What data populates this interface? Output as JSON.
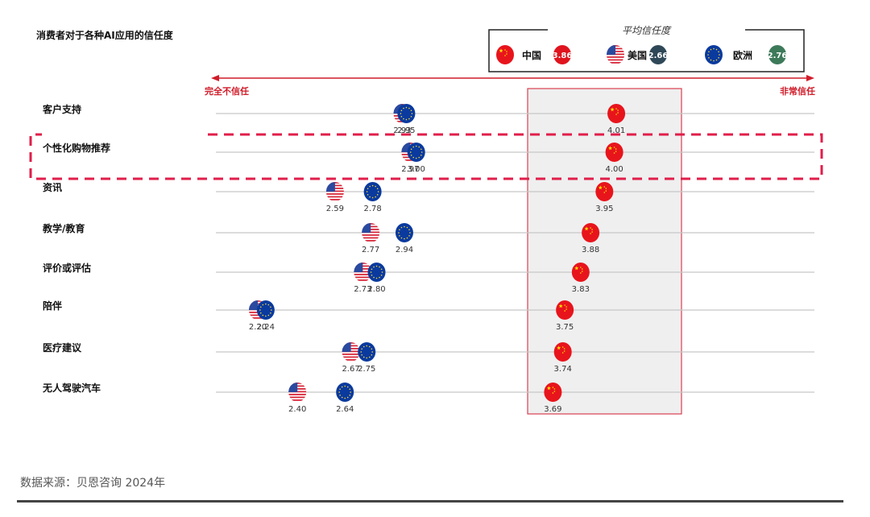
{
  "chart_data": {
    "type": "scatter",
    "title": "消费者对于各种AI应用的信任度",
    "axis": {
      "left_label": "完全不信任",
      "right_label": "非常信任",
      "xlim": [
        2.0,
        4.4
      ]
    },
    "legend": {
      "title": "平均信任度",
      "placement": "top-right",
      "entries": [
        {
          "name": "中国",
          "flag": "china-flag",
          "average": "3.86",
          "badge_color": "#e0141e"
        },
        {
          "name": "美国",
          "flag": "usa-flag",
          "average": "2.66",
          "badge_color": "#2f4858"
        },
        {
          "name": "欧洲",
          "flag": "eu-flag",
          "average": "2.76",
          "badge_color": "#3d7a5a"
        }
      ]
    },
    "categories": [
      "客户支持",
      "个性化购物推荐",
      "资讯",
      "教学/教育",
      "评价或评估",
      "陪伴",
      "医疗建议",
      "无人驾驶汽车"
    ],
    "series": [
      {
        "name": "美国",
        "flag": "usa",
        "values": [
          2.93,
          2.97,
          2.59,
          2.77,
          2.73,
          2.2,
          2.67,
          2.4
        ]
      },
      {
        "name": "欧洲",
        "flag": "eu",
        "values": [
          2.95,
          3.0,
          2.78,
          2.94,
          2.8,
          2.24,
          2.75,
          2.64
        ]
      },
      {
        "name": "中国",
        "flag": "china",
        "values": [
          4.01,
          4.0,
          3.95,
          3.88,
          3.83,
          3.75,
          3.74,
          3.69
        ]
      }
    ],
    "highlight": {
      "category": "个性化购物推荐",
      "style": "dashed-red-box"
    },
    "china_region": "shaded-box"
  },
  "source": "数据来源：贝恩咨询 2024年",
  "colors": {
    "accent_red": "#d01c2a",
    "dash_red": "#e01e4a",
    "china_red": "#e8141c",
    "eu_blue": "#0a3a9e",
    "usa_red": "#d8283a",
    "usa_blue": "#2a4aa0",
    "grid": "#c8c8c8",
    "shade": "#efefef"
  }
}
